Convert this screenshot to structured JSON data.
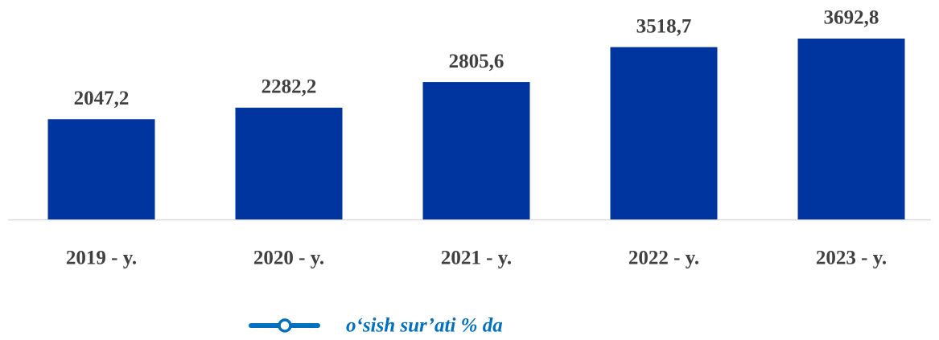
{
  "chart_data": {
    "type": "bar",
    "categories": [
      "2019 - y.",
      "2020 - y.",
      "2021 - y.",
      "2022 - y.",
      "2023 - y."
    ],
    "values": [
      2047.2,
      2282.2,
      2805.6,
      3518.7,
      3692.8
    ],
    "value_labels": [
      "2047,2",
      "2282,2",
      "2805,6",
      "3518,7",
      "3692,8"
    ],
    "color": "#0035a0",
    "legend": {
      "label": "o‘sish sur’ati % da",
      "color": "#0070c0"
    }
  }
}
